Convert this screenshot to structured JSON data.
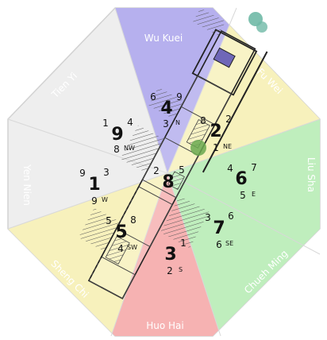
{
  "colors": {
    "octagon_fill": "#eeeeee",
    "octagon_stroke": "#d2d2d2",
    "sector_purple": "#b6b0ee",
    "sector_green": "#bfeebd",
    "sector_red": "#f6b2b2",
    "sector_yellow": "#f7f1bc",
    "plan_line": "#222222",
    "tree_green": "#6aa84f"
  },
  "sectors": [
    {
      "id": "wu-kuei",
      "label": "Wu Kuei"
    },
    {
      "id": "fu-wei",
      "label": "Fu Wei"
    },
    {
      "id": "liu-sha",
      "label": "Liu Sha"
    },
    {
      "id": "chueh-ming",
      "label": "Chueh Ming"
    },
    {
      "id": "huo-hai",
      "label": "Huo Hai"
    },
    {
      "id": "sheng-chi",
      "label": "Sheng Chi"
    },
    {
      "id": "yen-nien",
      "label": "Yen Nien"
    },
    {
      "id": "tien-yi",
      "label": "Tien Yi"
    }
  ],
  "palaces": [
    {
      "id": "n",
      "center": "4",
      "left": "6",
      "right": "9",
      "bottom": "3",
      "dir": "N"
    },
    {
      "id": "ne",
      "center": "2",
      "left": "8",
      "right": "2",
      "bottom": "1",
      "dir": "NE"
    },
    {
      "id": "e",
      "center": "6",
      "left": "4",
      "right": "7",
      "bottom": "5",
      "dir": "E"
    },
    {
      "id": "se",
      "center": "7",
      "left": "3",
      "right": "6",
      "bottom": "6",
      "dir": "SE"
    },
    {
      "id": "s",
      "center": "3",
      "left": "",
      "right": "1",
      "bottom": "2",
      "dir": "S"
    },
    {
      "id": "sw",
      "center": "5",
      "left": "5",
      "right": "8",
      "bottom": "4",
      "dir": "SW"
    },
    {
      "id": "w",
      "center": "1",
      "left": "9",
      "right": "3",
      "bottom": "9",
      "dir": "W"
    },
    {
      "id": "nw",
      "center": "9",
      "left": "1",
      "right": "4",
      "bottom": "8",
      "dir": "NW"
    },
    {
      "id": "c",
      "center": "8",
      "left": "2",
      "right": "5",
      "bottom": "",
      "dir": ""
    }
  ]
}
